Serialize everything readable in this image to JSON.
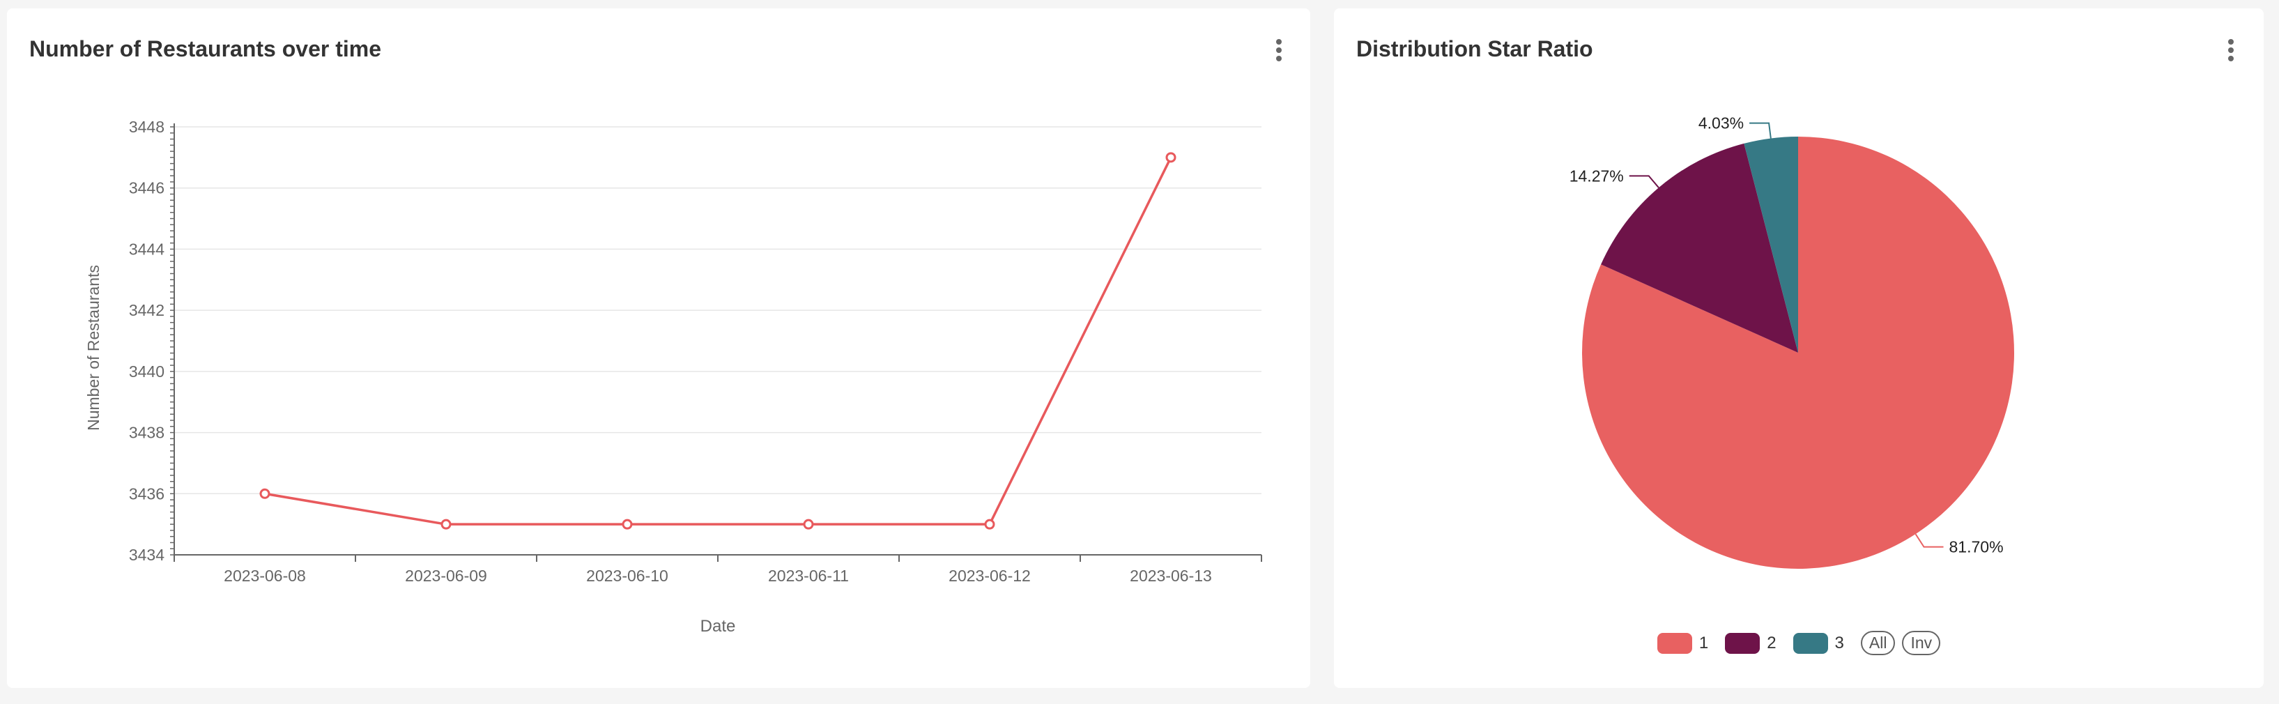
{
  "colors": {
    "line": "#e8595c",
    "pie1": "#e86161",
    "pie2": "#6e1349",
    "pie3": "#367985",
    "grid": "#e6e6e6",
    "axis": "#666666"
  },
  "icons": {
    "menu": "more-vertical-icon"
  },
  "line_card": {
    "title": "Number of Restaurants over time"
  },
  "pie_card": {
    "title": "Distribution Star Ratio",
    "all_label": "All",
    "inv_label": "Inv"
  },
  "chart_data": [
    {
      "type": "line",
      "title": "Number of Restaurants over time",
      "xlabel": "Date",
      "ylabel": "Number of Restaurants",
      "x": [
        "2023-06-08",
        "2023-06-09",
        "2023-06-10",
        "2023-06-11",
        "2023-06-12",
        "2023-06-13"
      ],
      "values": [
        3436,
        3435,
        3435,
        3435,
        3435,
        3447
      ],
      "ylim": [
        3434,
        3448
      ],
      "yticks": [
        "3434",
        "3436",
        "3438",
        "3440",
        "3442",
        "3444",
        "3446",
        "3448"
      ],
      "grid": true,
      "markers": "hollow-circle"
    },
    {
      "type": "pie",
      "title": "Distribution Star Ratio",
      "categories": [
        "1",
        "2",
        "3"
      ],
      "values": [
        81.7,
        14.27,
        4.03
      ],
      "labels": [
        "81.70%",
        "14.27%",
        "4.03%"
      ],
      "legend": "bottom-center"
    }
  ]
}
